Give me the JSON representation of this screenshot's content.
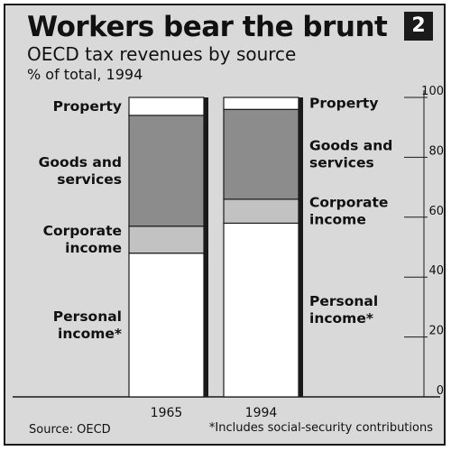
{
  "title": "Workers bear the brunt",
  "chart_number": "2",
  "subtitle": "OECD tax revenues by source",
  "unit_label": "% of total, 1994",
  "source": "Source: OECD",
  "footnote": "*Includes social-security contributions",
  "colors": {
    "personal": "#ffffff",
    "corporate": "#c2c2c2",
    "goods": "#8c8c8c",
    "property": "#ffffff",
    "frame": "#d9d9d9",
    "ink": "#111111"
  },
  "chart_data": {
    "type": "bar",
    "stacked": true,
    "categories": [
      "1965",
      "1994"
    ],
    "series": [
      {
        "name": "Personal income*",
        "values": [
          48,
          58
        ]
      },
      {
        "name": "Corporate income",
        "values": [
          9,
          8
        ]
      },
      {
        "name": "Goods and services",
        "values": [
          37,
          30
        ]
      },
      {
        "name": "Property",
        "values": [
          6,
          4
        ]
      }
    ],
    "yticks": [
      0,
      20,
      40,
      60,
      80,
      100
    ],
    "ylim": [
      0,
      100
    ],
    "labels_1965": [
      {
        "lines": [
          "Property"
        ]
      },
      {
        "lines": [
          "Goods and",
          "services"
        ]
      },
      {
        "lines": [
          "Corporate",
          "income"
        ]
      },
      {
        "lines": [
          "Personal",
          "income*"
        ]
      }
    ],
    "labels_1994": [
      {
        "lines": [
          "Property"
        ]
      },
      {
        "lines": [
          "Goods and",
          "services"
        ]
      },
      {
        "lines": [
          "Corporate",
          "income"
        ]
      },
      {
        "lines": [
          "Personal",
          "income*"
        ]
      }
    ]
  }
}
